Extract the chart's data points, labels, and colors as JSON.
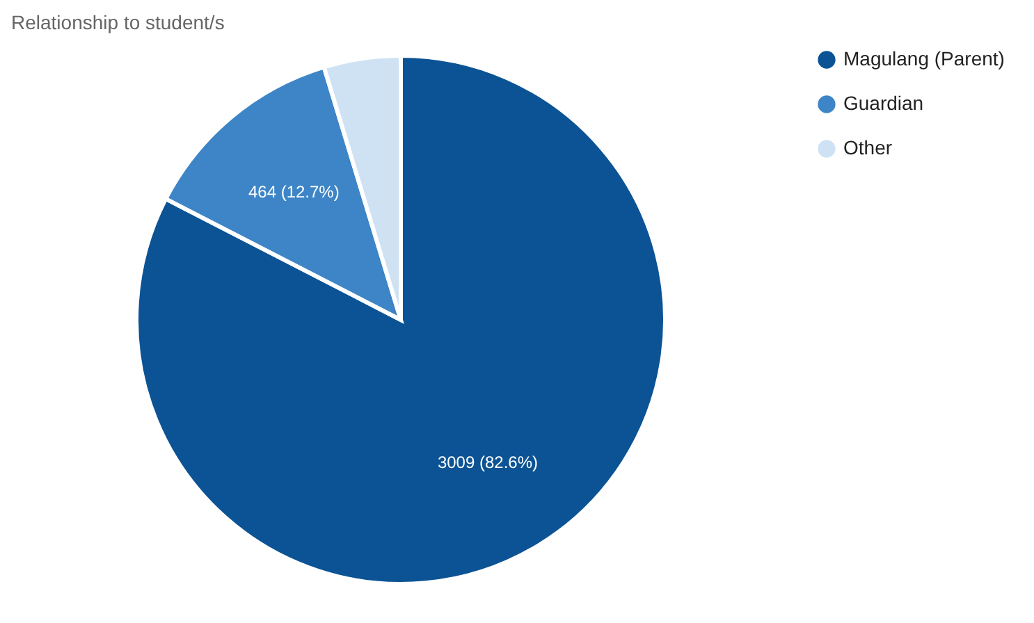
{
  "chart_data": {
    "type": "pie",
    "title": "Relationship to student/s",
    "categories": [
      "Magulang (Parent)",
      "Guardian",
      "Other"
    ],
    "values": [
      3009,
      464,
      171
    ],
    "colors": [
      "#0b5394",
      "#3d85c6",
      "#cfe2f3"
    ],
    "value_labels": [
      "3009 (82.6%)",
      "464 (12.7%)",
      null
    ],
    "legend": "top right"
  }
}
